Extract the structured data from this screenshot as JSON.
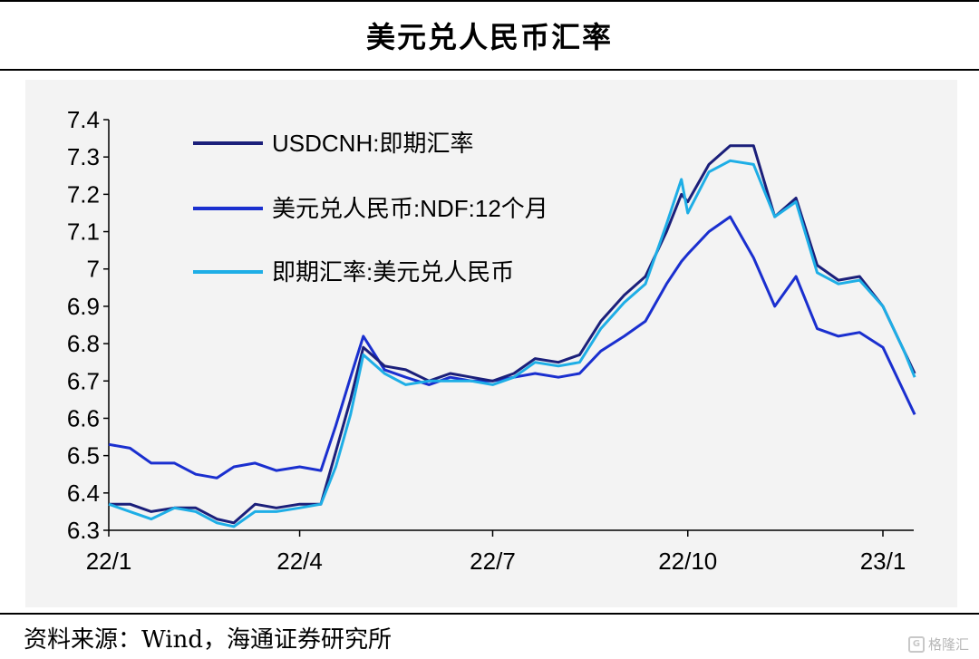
{
  "header": {
    "title": "美元兑人民币汇率"
  },
  "footer": {
    "source": "资料来源：Wind，海通证券研究所",
    "watermark": "格隆汇"
  },
  "chart_data": {
    "type": "line",
    "title": "美元兑人民币汇率",
    "xlabel": "",
    "ylabel": "",
    "ylim": [
      6.3,
      7.4
    ],
    "yticks": [
      "7.4",
      "7.3",
      "7.2",
      "7.1",
      "7",
      "6.9",
      "6.8",
      "6.7",
      "6.6",
      "6.5",
      "6.4",
      "6.3"
    ],
    "xticks": [
      "22/1",
      "22/4",
      "22/7",
      "22/10",
      "23/1"
    ],
    "xrange": [
      "2022-01-01",
      "2023-01-16"
    ],
    "grid": false,
    "legend_position": "top-left",
    "colors": {
      "usdcnh": "#1b1f7a",
      "ndf": "#1a2fcf",
      "spot": "#1eaee6"
    },
    "series": [
      {
        "name": "USDCNH:即期汇率",
        "key": "usdcnh",
        "x": [
          "2022-01-01",
          "2022-01-11",
          "2022-01-21",
          "2022-02-01",
          "2022-02-11",
          "2022-02-21",
          "2022-03-01",
          "2022-03-11",
          "2022-03-21",
          "2022-04-01",
          "2022-04-11",
          "2022-04-18",
          "2022-04-25",
          "2022-05-01",
          "2022-05-11",
          "2022-05-21",
          "2022-06-01",
          "2022-06-11",
          "2022-06-21",
          "2022-07-01",
          "2022-07-11",
          "2022-07-21",
          "2022-08-01",
          "2022-08-11",
          "2022-08-21",
          "2022-09-01",
          "2022-09-11",
          "2022-09-21",
          "2022-09-28",
          "2022-10-01",
          "2022-10-11",
          "2022-10-21",
          "2022-11-01",
          "2022-11-11",
          "2022-11-21",
          "2022-12-01",
          "2022-12-11",
          "2022-12-21",
          "2023-01-01",
          "2023-01-11",
          "2023-01-16"
        ],
        "values": [
          6.37,
          6.37,
          6.35,
          6.36,
          6.36,
          6.33,
          6.32,
          6.37,
          6.36,
          6.37,
          6.37,
          6.51,
          6.65,
          6.79,
          6.74,
          6.73,
          6.7,
          6.72,
          6.71,
          6.7,
          6.72,
          6.76,
          6.75,
          6.77,
          6.86,
          6.93,
          6.98,
          7.1,
          7.2,
          7.18,
          7.28,
          7.33,
          7.33,
          7.14,
          7.19,
          7.01,
          6.97,
          6.98,
          6.9,
          6.78,
          6.72
        ]
      },
      {
        "name": "美元兑人民币:NDF:12个月",
        "key": "ndf",
        "x": [
          "2022-01-01",
          "2022-01-11",
          "2022-01-21",
          "2022-02-01",
          "2022-02-11",
          "2022-02-21",
          "2022-03-01",
          "2022-03-11",
          "2022-03-21",
          "2022-04-01",
          "2022-04-11",
          "2022-04-18",
          "2022-04-25",
          "2022-05-01",
          "2022-05-11",
          "2022-05-21",
          "2022-06-01",
          "2022-06-11",
          "2022-06-21",
          "2022-07-01",
          "2022-07-11",
          "2022-07-21",
          "2022-08-01",
          "2022-08-11",
          "2022-08-21",
          "2022-09-01",
          "2022-09-11",
          "2022-09-21",
          "2022-09-28",
          "2022-10-01",
          "2022-10-11",
          "2022-10-21",
          "2022-11-01",
          "2022-11-11",
          "2022-11-21",
          "2022-12-01",
          "2022-12-11",
          "2022-12-21",
          "2023-01-01",
          "2023-01-11",
          "2023-01-16"
        ],
        "values": [
          6.53,
          6.52,
          6.48,
          6.48,
          6.45,
          6.44,
          6.47,
          6.48,
          6.46,
          6.47,
          6.46,
          6.58,
          6.71,
          6.82,
          6.73,
          6.71,
          6.69,
          6.71,
          6.7,
          6.7,
          6.71,
          6.72,
          6.71,
          6.72,
          6.78,
          6.82,
          6.86,
          6.96,
          7.02,
          7.04,
          7.1,
          7.14,
          7.03,
          6.9,
          6.98,
          6.84,
          6.82,
          6.83,
          6.79,
          6.67,
          6.61
        ]
      },
      {
        "name": "即期汇率:美元兑人民币",
        "key": "spot",
        "x": [
          "2022-01-01",
          "2022-01-11",
          "2022-01-21",
          "2022-02-01",
          "2022-02-11",
          "2022-02-21",
          "2022-03-01",
          "2022-03-11",
          "2022-03-21",
          "2022-04-01",
          "2022-04-11",
          "2022-04-18",
          "2022-04-25",
          "2022-05-01",
          "2022-05-11",
          "2022-05-21",
          "2022-06-01",
          "2022-06-11",
          "2022-06-21",
          "2022-07-01",
          "2022-07-11",
          "2022-07-21",
          "2022-08-01",
          "2022-08-11",
          "2022-08-21",
          "2022-09-01",
          "2022-09-11",
          "2022-09-21",
          "2022-09-28",
          "2022-10-01",
          "2022-10-11",
          "2022-10-21",
          "2022-11-01",
          "2022-11-11",
          "2022-11-21",
          "2022-12-01",
          "2022-12-11",
          "2022-12-21",
          "2023-01-01",
          "2023-01-11",
          "2023-01-16"
        ],
        "values": [
          6.37,
          6.35,
          6.33,
          6.36,
          6.35,
          6.32,
          6.31,
          6.35,
          6.35,
          6.36,
          6.37,
          6.47,
          6.61,
          6.77,
          6.72,
          6.69,
          6.7,
          6.7,
          6.7,
          6.69,
          6.71,
          6.75,
          6.74,
          6.75,
          6.84,
          6.91,
          6.96,
          7.12,
          7.24,
          7.15,
          7.26,
          7.29,
          7.28,
          7.14,
          7.18,
          6.99,
          6.96,
          6.97,
          6.9,
          6.78,
          6.71
        ]
      }
    ]
  }
}
